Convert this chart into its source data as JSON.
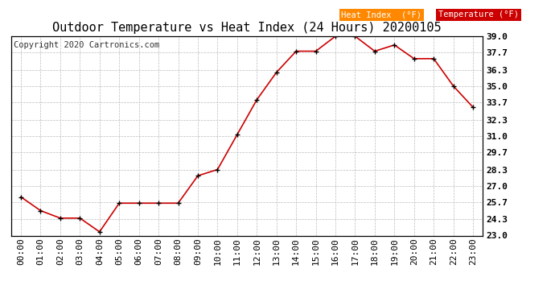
{
  "title": "Outdoor Temperature vs Heat Index (24 Hours) 20200105",
  "copyright": "Copyright 2020 Cartronics.com",
  "hours": [
    "00:00",
    "01:00",
    "02:00",
    "03:00",
    "04:00",
    "05:00",
    "06:00",
    "07:00",
    "08:00",
    "09:00",
    "10:00",
    "11:00",
    "12:00",
    "13:00",
    "14:00",
    "15:00",
    "16:00",
    "17:00",
    "18:00",
    "19:00",
    "20:00",
    "21:00",
    "22:00",
    "23:00"
  ],
  "temperature": [
    26.1,
    25.0,
    24.4,
    24.4,
    23.3,
    25.6,
    25.6,
    25.6,
    25.6,
    27.8,
    28.3,
    31.1,
    33.9,
    36.1,
    37.8,
    37.8,
    39.0,
    39.0,
    37.8,
    38.3,
    37.2,
    37.2,
    35.0,
    33.3
  ],
  "line_color": "#cc0000",
  "marker_color": "#000000",
  "bg_color": "#ffffff",
  "grid_color": "#bbbbbb",
  "ylim_min": 23.0,
  "ylim_max": 39.0,
  "yticks": [
    23.0,
    24.3,
    25.7,
    27.0,
    28.3,
    29.7,
    31.0,
    32.3,
    33.7,
    35.0,
    36.3,
    37.7,
    39.0
  ],
  "legend_heat_bg": "#ff8800",
  "legend_temp_bg": "#cc0000",
  "legend_text_color": "#ffffff",
  "title_fontsize": 11,
  "copyright_fontsize": 7.5,
  "tick_fontsize": 8,
  "legend_fontsize": 7.5
}
